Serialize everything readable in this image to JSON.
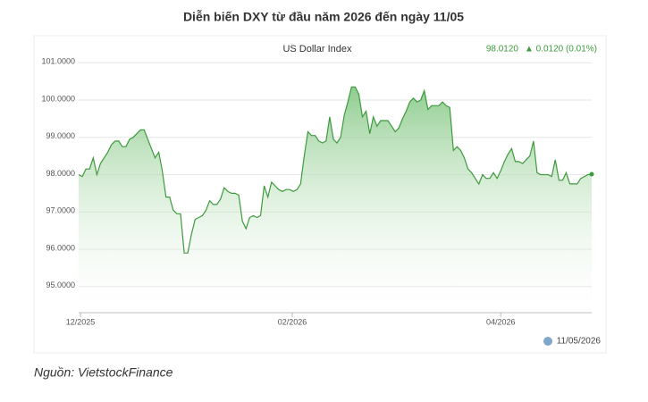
{
  "chart_data": {
    "type": "line",
    "title": "Diễn biến DXY từ đầu năm 2026 đến ngày 11/05",
    "subtitle": "US Dollar Index",
    "last_value": "98.0120",
    "change": "▲ 0.0120 (0.01%)",
    "date": "11/05/2026",
    "source": "Nguồn: VietstockFinance",
    "color": "#3d9a3d",
    "grid": true,
    "values": [
      98.0,
      97.95,
      98.15,
      98.15,
      98.45,
      98.0,
      98.3,
      98.45,
      98.6,
      98.8,
      98.9,
      98.9,
      98.75,
      98.75,
      98.95,
      99.0,
      99.1,
      99.2,
      99.2,
      98.95,
      98.7,
      98.45,
      98.6,
      98.1,
      97.4,
      97.4,
      97.05,
      96.95,
      96.95,
      95.9,
      95.9,
      96.4,
      96.8,
      96.85,
      96.9,
      97.05,
      97.3,
      97.2,
      97.2,
      97.35,
      97.65,
      97.55,
      97.5,
      97.5,
      97.45,
      96.75,
      96.55,
      96.85,
      96.9,
      96.85,
      96.9,
      97.7,
      97.4,
      97.8,
      97.7,
      97.6,
      97.55,
      97.6,
      97.6,
      97.55,
      97.6,
      97.75,
      98.5,
      99.15,
      99.05,
      99.05,
      98.9,
      98.85,
      98.9,
      99.55,
      98.95,
      98.85,
      99.0,
      99.6,
      99.95,
      100.35,
      100.35,
      100.15,
      99.55,
      99.7,
      99.1,
      99.55,
      99.3,
      99.45,
      99.45,
      99.45,
      99.3,
      99.15,
      99.25,
      99.5,
      99.7,
      99.95,
      100.05,
      99.95,
      100.0,
      100.25,
      99.75,
      99.85,
      99.85,
      99.85,
      99.95,
      99.85,
      99.8,
      98.65,
      98.75,
      98.65,
      98.45,
      98.15,
      98.05,
      97.9,
      97.75,
      98.0,
      97.9,
      97.9,
      98.05,
      97.9,
      98.1,
      98.35,
      98.55,
      98.7,
      98.35,
      98.35,
      98.3,
      98.4,
      98.5,
      98.9,
      98.05,
      98.0,
      98.0,
      98.0,
      97.95,
      98.4,
      97.85,
      97.85,
      98.05,
      97.75,
      97.75,
      97.75,
      97.9,
      97.95,
      98.0,
      98.012
    ],
    "xlim": [
      0,
      141
    ],
    "xticks": [
      {
        "value": 0.5,
        "label": "12/2025"
      },
      {
        "value": 58.7,
        "label": "02/2026"
      },
      {
        "value": 116,
        "label": "04/2026"
      }
    ],
    "ylim": [
      94.3,
      101.7
    ],
    "yticks": [
      {
        "value": 95,
        "label": "95.0000"
      },
      {
        "value": 96,
        "label": "96.0000"
      },
      {
        "value": 97,
        "label": "97.0000"
      },
      {
        "value": 98,
        "label": "98.0000"
      },
      {
        "value": 99,
        "label": "99.0000"
      },
      {
        "value": 100,
        "label": "100.0000"
      },
      {
        "value": 101,
        "label": "101.0000"
      }
    ]
  }
}
